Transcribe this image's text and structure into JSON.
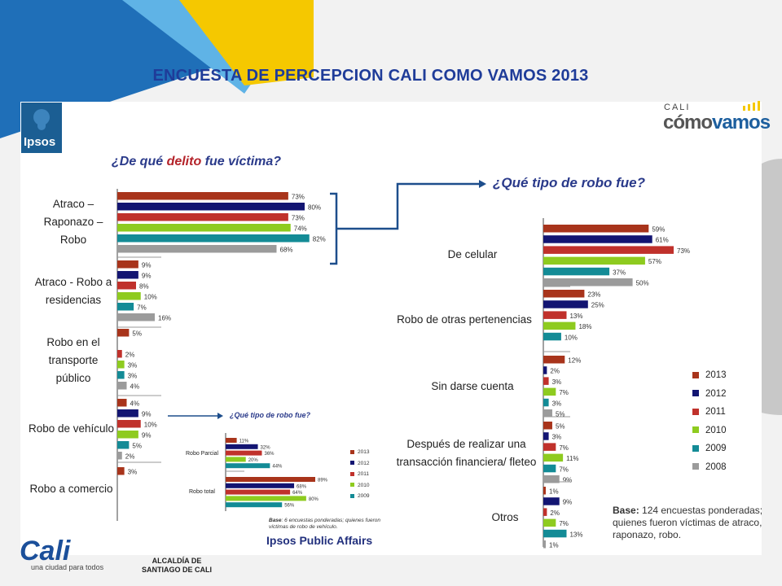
{
  "slide": {
    "title": "ENCUESTA DE PERCEPCION CALI COMO VAMOS 2013",
    "colors": {
      "title": "#1f3c99",
      "blue_band": "#1f6fb8",
      "yellow_band": "#f5c800",
      "light_blue_band": "#5fb3e6"
    }
  },
  "logos": {
    "ipsos": "Ipsos",
    "cali_small": "CALI",
    "como_a": "cómo",
    "como_b": "vamos",
    "ipsos_pa": "Ipsos Public Affairs",
    "alcaldia_1": "ALCALDÍA DE",
    "alcaldia_2": "SANTIAGO DE CALI",
    "cali_tagline": "una ciudad para todos",
    "cali_word": "Cali"
  },
  "left_chart": {
    "question_a": "¿De qué ",
    "question_b": "delito",
    "question_c": " fue víctima?",
    "cat_1": "Atraco –\nRaponazo –\nRobo",
    "cat_2": "Atraco - Robo a\nresidencias",
    "cat_3": "Robo en el\ntransporte\npúblico",
    "cat_4": "Robo de vehículo",
    "cat_5": "Robo a comercio"
  },
  "right_chart": {
    "question": "¿Qué tipo de robo fue?",
    "cat_1": "De celular",
    "cat_2": "Robo de otras pertenencias",
    "cat_3": "Sin darse cuenta",
    "cat_4": "Después de realizar una\ntransacción financiera/ fleteo",
    "cat_5": "Otros",
    "base_bold": "Base:",
    "base_text": " 124 encuestas ponderadas; quienes fueron víctimas de atraco, raponazo, robo."
  },
  "mini_chart": {
    "question": "¿Qué tipo de robo fue?",
    "cat_1": "Robo Parcial",
    "cat_2": "Robo total",
    "base_bold": "Base",
    "base_text": ": 6 encuestas ponderadas; quienes fueron víctimas de robo de vehículo."
  },
  "legend": [
    "2013",
    "2012",
    "2011",
    "2010",
    "2009",
    "2008"
  ],
  "mini_legend": [
    "2013",
    "2012",
    "2011",
    "2010",
    "2009"
  ],
  "series_colors": {
    "2013": "#a8341b",
    "2012": "#131572",
    "2011": "#c0312b",
    "2010": "#8ecb1f",
    "2009": "#138b96",
    "2008": "#9b9b9b"
  },
  "chart_data": [
    {
      "type": "bar",
      "title": "¿De qué delito fue víctima?",
      "categories": [
        "Atraco – Raponazo – Robo",
        "Atraco - Robo a residencias",
        "Robo en el transporte público",
        "Robo de vehículo",
        "Robo a comercio"
      ],
      "series": [
        {
          "name": "2013",
          "values": [
            73,
            9,
            5,
            4,
            3
          ]
        },
        {
          "name": "2012",
          "values": [
            80,
            9,
            null,
            9,
            null
          ]
        },
        {
          "name": "2011",
          "values": [
            73,
            8,
            2,
            10,
            null
          ]
        },
        {
          "name": "2010",
          "values": [
            74,
            10,
            3,
            9,
            null
          ]
        },
        {
          "name": "2009",
          "values": [
            82,
            7,
            3,
            5,
            null
          ]
        },
        {
          "name": "2008",
          "values": [
            68,
            16,
            4,
            2,
            null
          ]
        }
      ]
    },
    {
      "type": "bar",
      "title": "¿Qué tipo de robo fue?",
      "categories": [
        "De celular",
        "Robo de otras pertenencias",
        "Sin darse cuenta",
        "Después de realizar una transacción financiera/ fleteo",
        "Otros"
      ],
      "series": [
        {
          "name": "2013",
          "values": [
            59,
            23,
            12,
            5,
            1
          ]
        },
        {
          "name": "2012",
          "values": [
            61,
            25,
            2,
            3,
            9
          ]
        },
        {
          "name": "2011",
          "values": [
            73,
            13,
            3,
            7,
            2
          ]
        },
        {
          "name": "2010",
          "values": [
            57,
            18,
            7,
            11,
            7
          ]
        },
        {
          "name": "2009",
          "values": [
            37,
            10,
            3,
            7,
            13
          ]
        },
        {
          "name": "2008",
          "values": [
            50,
            null,
            5,
            9,
            1
          ]
        }
      ]
    },
    {
      "type": "bar",
      "title": "¿Qué tipo de robo fue?",
      "categories": [
        "Robo Parcial",
        "Robo total"
      ],
      "series": [
        {
          "name": "2013",
          "values": [
            11,
            89
          ]
        },
        {
          "name": "2012",
          "values": [
            32,
            68
          ]
        },
        {
          "name": "2011",
          "values": [
            36,
            64
          ]
        },
        {
          "name": "2010",
          "values": [
            20,
            80
          ]
        },
        {
          "name": "2009",
          "values": [
            44,
            56
          ]
        }
      ]
    }
  ]
}
